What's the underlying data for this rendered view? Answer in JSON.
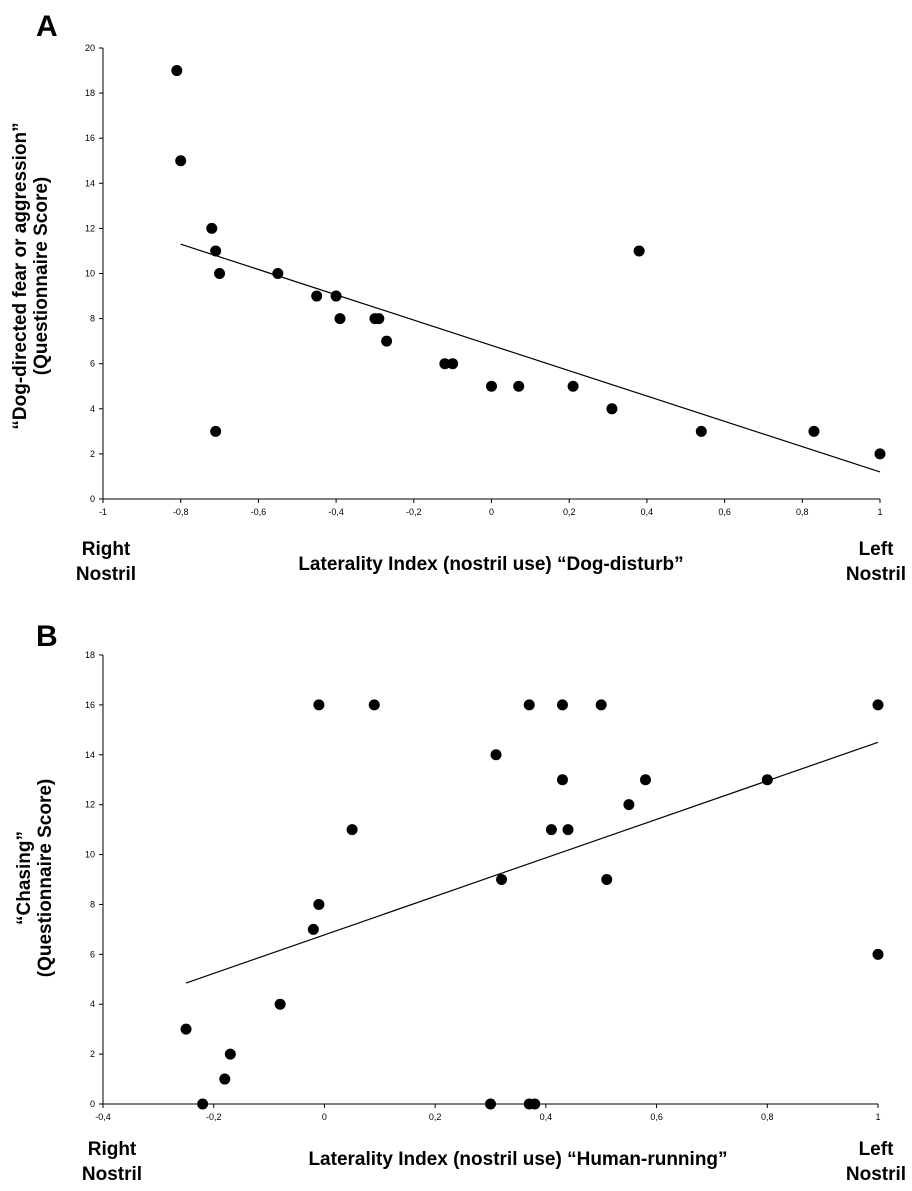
{
  "chart_data": [
    {
      "type": "scatter",
      "panel": "A",
      "xlabel": "Laterality Index (nostril use) “Dog-disturb”",
      "ylabel_line1": "“Dog-directed fear or aggression”",
      "ylabel_line2": "(Questionnaire Score)",
      "left_side_line1": "Right",
      "left_side_line2": "Nostril",
      "right_side_line1": "Left",
      "right_side_line2": "Nostril",
      "xlim": [
        -1,
        1
      ],
      "ylim": [
        0,
        20
      ],
      "x_ticks": [
        -1,
        -0.8,
        -0.6,
        -0.4,
        -0.2,
        0,
        0.2,
        0.4,
        0.6,
        0.8,
        1
      ],
      "x_tick_labels": [
        "-1",
        "-0,8",
        "-0,6",
        "-0,4",
        "-0,2",
        "0",
        "0,2",
        "0,4",
        "0,6",
        "0,8",
        "1"
      ],
      "y_ticks": [
        0,
        2,
        4,
        6,
        8,
        10,
        12,
        14,
        16,
        18,
        20
      ],
      "y_tick_labels": [
        "0",
        "2",
        "4",
        "6",
        "8",
        "10",
        "12",
        "14",
        "16",
        "18",
        "20"
      ],
      "points": [
        [
          -0.81,
          19
        ],
        [
          -0.8,
          15
        ],
        [
          -0.72,
          12
        ],
        [
          -0.71,
          11
        ],
        [
          -0.7,
          10
        ],
        [
          -0.71,
          3
        ],
        [
          -0.55,
          10
        ],
        [
          -0.45,
          9
        ],
        [
          -0.4,
          9
        ],
        [
          -0.39,
          8
        ],
        [
          -0.3,
          8
        ],
        [
          -0.29,
          8
        ],
        [
          -0.27,
          7
        ],
        [
          -0.12,
          6
        ],
        [
          -0.1,
          6
        ],
        [
          0.0,
          5
        ],
        [
          0.07,
          5
        ],
        [
          0.21,
          5
        ],
        [
          0.31,
          4
        ],
        [
          0.38,
          11
        ],
        [
          0.54,
          3
        ],
        [
          0.83,
          3
        ],
        [
          1.0,
          2
        ]
      ],
      "trendline": [
        [
          -0.8,
          11.3
        ],
        [
          1.0,
          1.2
        ]
      ],
      "grid": false,
      "legend": "none"
    },
    {
      "type": "scatter",
      "panel": "B",
      "xlabel": "Laterality Index (nostril use) “Human-running”",
      "ylabel_line1": "“Chasing”",
      "ylabel_line2": "(Questionnaire Score)",
      "left_side_line1": "Right",
      "left_side_line2": "Nostril",
      "right_side_line1": "Left",
      "right_side_line2": "Nostril",
      "xlim": [
        -0.4,
        1
      ],
      "ylim": [
        0,
        18
      ],
      "x_ticks": [
        -0.4,
        -0.2,
        0,
        0.2,
        0.4,
        0.6,
        0.8,
        1
      ],
      "x_tick_labels": [
        "-0,4",
        "-0,2",
        "0",
        "0,2",
        "0,4",
        "0,6",
        "0,8",
        "1"
      ],
      "y_ticks": [
        0,
        2,
        4,
        6,
        8,
        10,
        12,
        14,
        16,
        18
      ],
      "y_tick_labels": [
        "0",
        "2",
        "4",
        "6",
        "8",
        "10",
        "12",
        "14",
        "16",
        "18"
      ],
      "points": [
        [
          -0.25,
          3
        ],
        [
          -0.22,
          0
        ],
        [
          -0.18,
          1
        ],
        [
          -0.17,
          2
        ],
        [
          -0.08,
          4
        ],
        [
          -0.02,
          7
        ],
        [
          -0.01,
          8
        ],
        [
          -0.01,
          16
        ],
        [
          0.05,
          11
        ],
        [
          0.09,
          16
        ],
        [
          0.3,
          0
        ],
        [
          0.31,
          14
        ],
        [
          0.32,
          9
        ],
        [
          0.37,
          0
        ],
        [
          0.38,
          0
        ],
        [
          0.37,
          16
        ],
        [
          0.41,
          11
        ],
        [
          0.43,
          13
        ],
        [
          0.43,
          16
        ],
        [
          0.44,
          11
        ],
        [
          0.5,
          16
        ],
        [
          0.51,
          9
        ],
        [
          0.55,
          12
        ],
        [
          0.58,
          13
        ],
        [
          0.8,
          13
        ],
        [
          1.0,
          16
        ],
        [
          1.0,
          6
        ]
      ],
      "trendline": [
        [
          -0.25,
          4.85
        ],
        [
          1.0,
          14.5
        ]
      ],
      "grid": false,
      "legend": "none"
    }
  ]
}
